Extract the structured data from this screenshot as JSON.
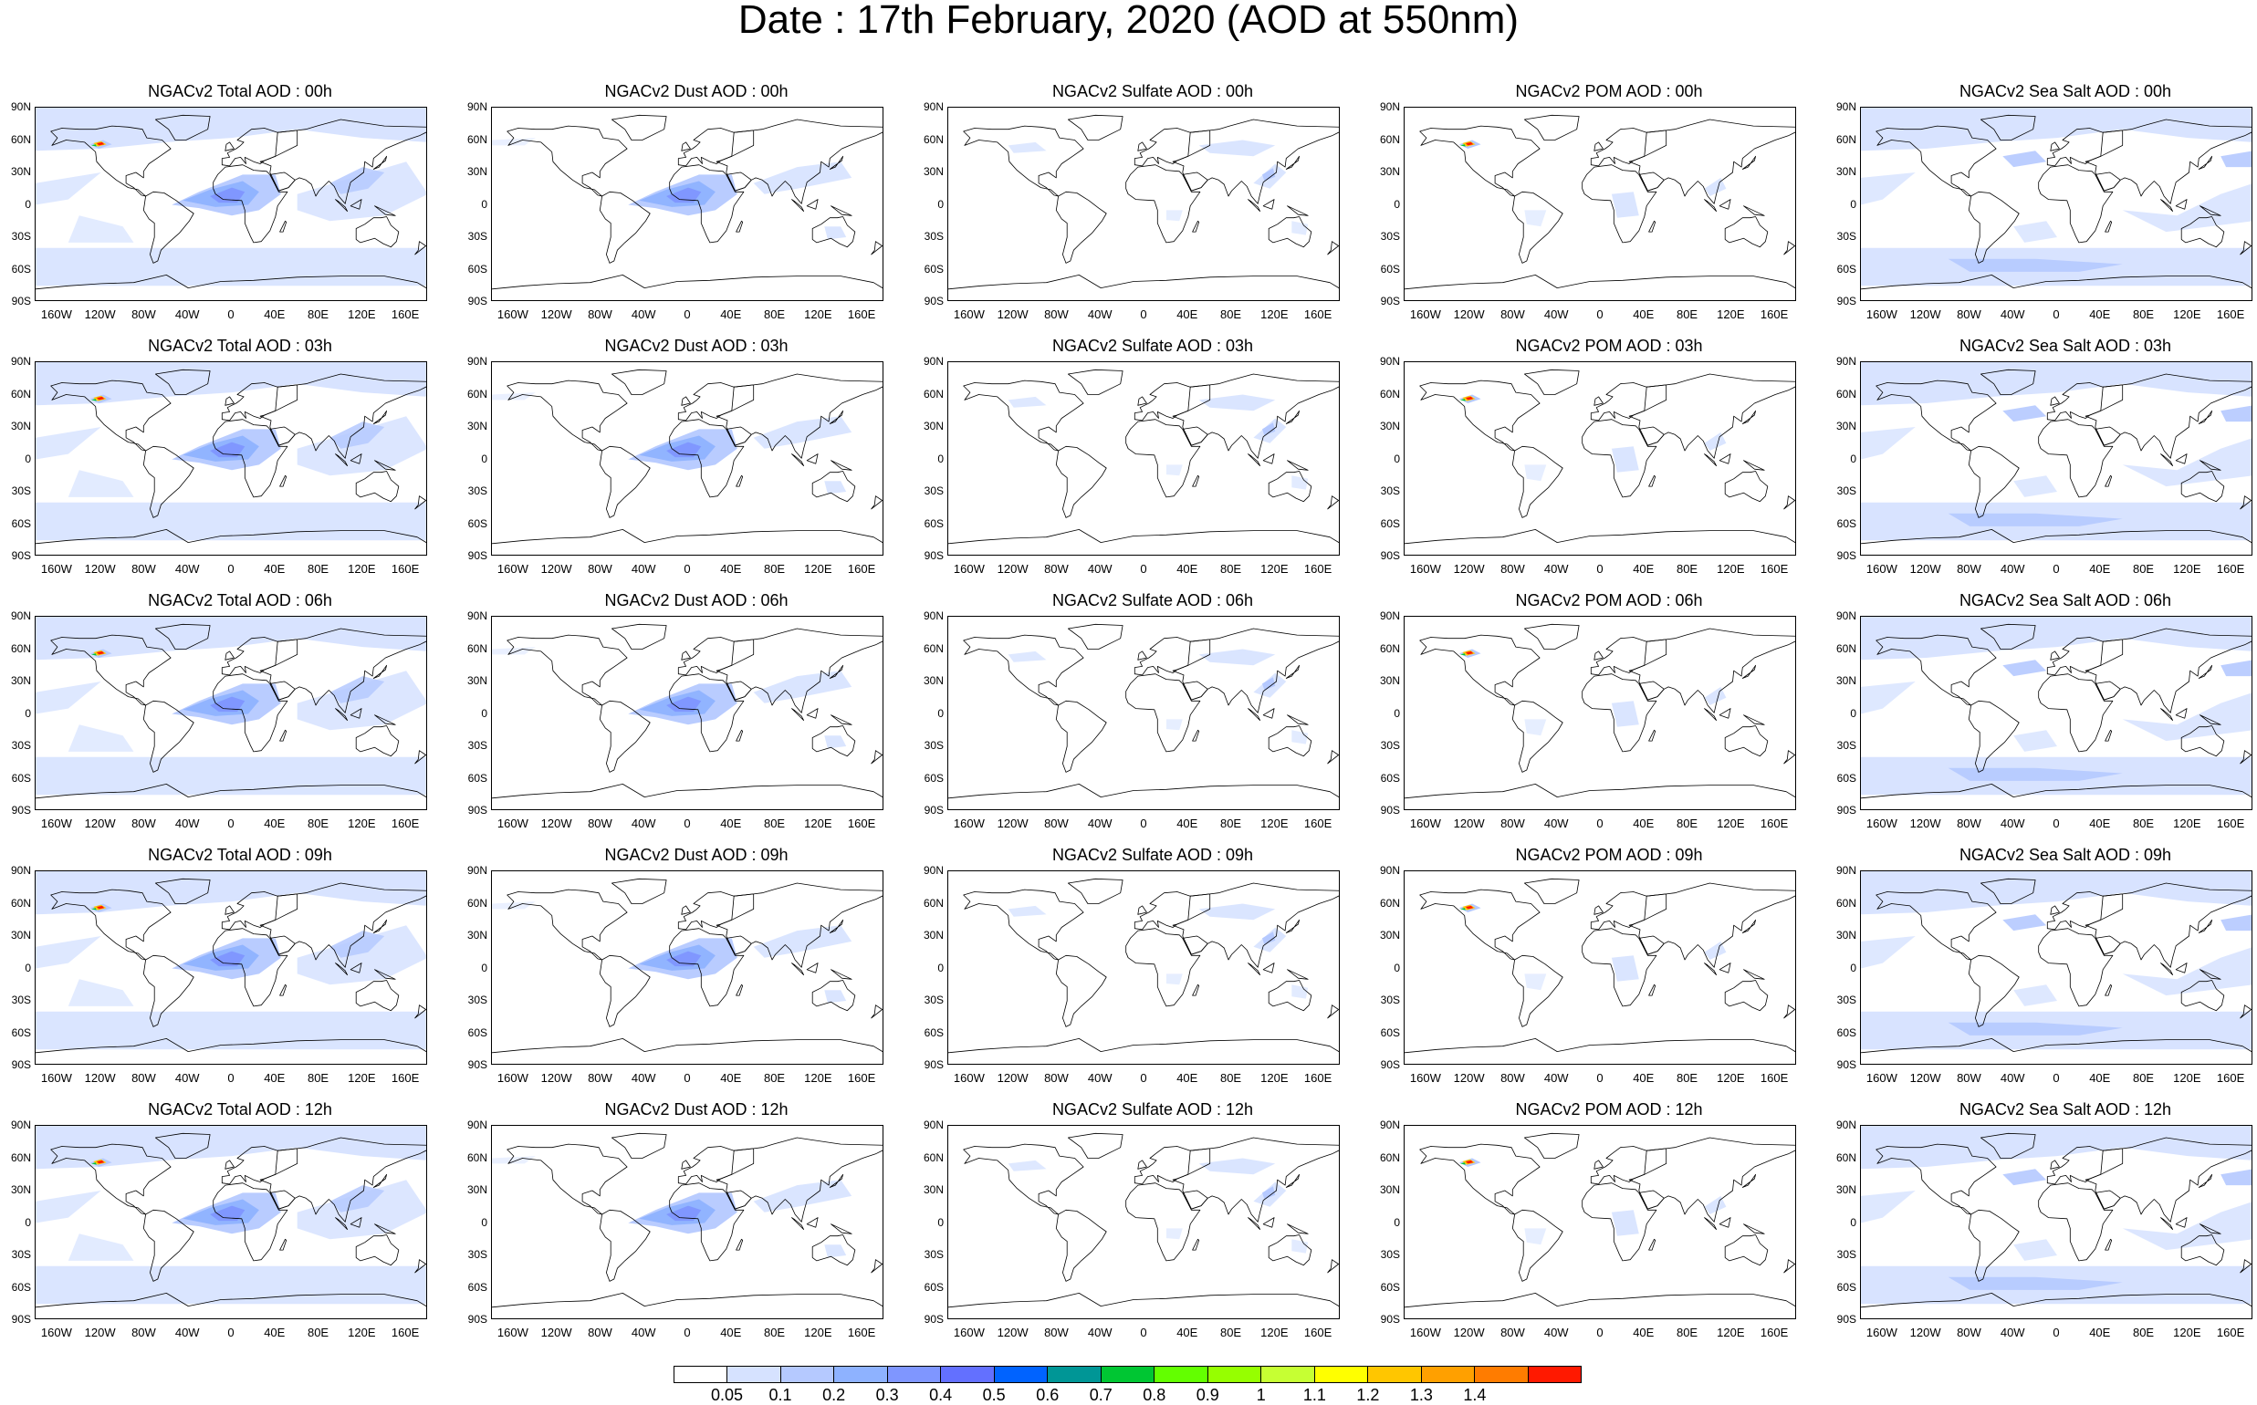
{
  "title": "Date : 17th February, 2020 (AOD at 550nm)",
  "lat_labels": [
    "90N",
    "60N",
    "30N",
    "0",
    "30S",
    "60S",
    "90S"
  ],
  "lon_labels": [
    "160W",
    "120W",
    "80W",
    "40W",
    "0",
    "40E",
    "80E",
    "120E",
    "160E"
  ],
  "panel_titles": [
    [
      "NGACv2 Total AOD : 00h",
      "NGACv2 Dust AOD : 00h",
      "NGACv2 Sulfate AOD : 00h",
      "NGACv2 POM AOD : 00h",
      "NGACv2 Sea Salt AOD : 00h"
    ],
    [
      "NGACv2 Total AOD : 03h",
      "NGACv2 Dust AOD : 03h",
      "NGACv2 Sulfate AOD : 03h",
      "NGACv2 POM AOD : 03h",
      "NGACv2 Sea Salt AOD : 03h"
    ],
    [
      "NGACv2 Total AOD : 06h",
      "NGACv2 Dust AOD : 06h",
      "NGACv2 Sulfate AOD : 06h",
      "NGACv2 POM AOD : 06h",
      "NGACv2 Sea Salt AOD : 06h"
    ],
    [
      "NGACv2 Total AOD : 09h",
      "NGACv2 Dust AOD : 09h",
      "NGACv2 Sulfate AOD : 09h",
      "NGACv2 POM AOD : 09h",
      "NGACv2 Sea Salt  AOD : 09h"
    ],
    [
      "NGACv2 Total AOD : 12h",
      "NGACv2 Dust AOD : 12h",
      "NGACv2 Sulfate AOD : 12h",
      "NGACv2 POM  AOD : 12h",
      "NGACv2 Sea Salt AOD : 12h"
    ]
  ],
  "colorbar": {
    "labels": [
      "0.05",
      "0.1",
      "0.2",
      "0.3",
      "0.4",
      "0.5",
      "0.6",
      "0.7",
      "0.8",
      "0.9",
      "1",
      "1.1",
      "1.2",
      "1.3",
      "1.4"
    ],
    "colors": [
      "#ffffff",
      "#d6e2ff",
      "#b5c9ff",
      "#8eb2ff",
      "#7f96ff",
      "#6370ff",
      "#0063ff",
      "#009696",
      "#00c633",
      "#63ff00",
      "#96ff00",
      "#c6ff33",
      "#ffff00",
      "#ffc600",
      "#ffa000",
      "#ff7c00",
      "#ff1900"
    ]
  },
  "colors": {
    "ocean_haze": "#d6e2ff",
    "plume": "#8eb2ff",
    "plume_core": "#6370ff",
    "coast": "#000000"
  }
}
